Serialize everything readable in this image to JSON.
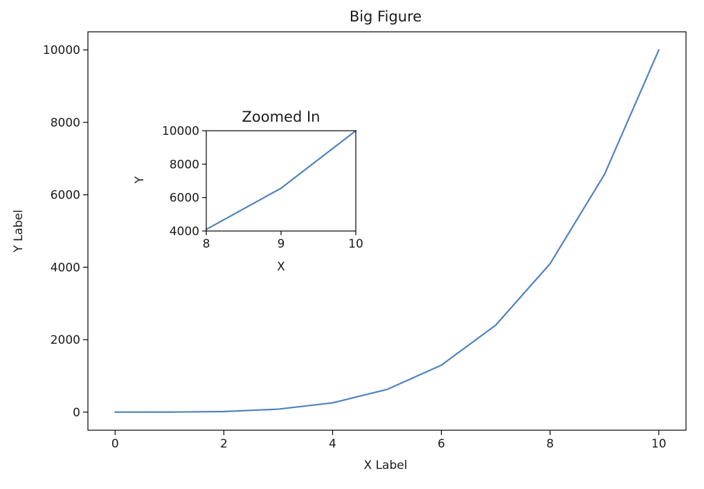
{
  "chart_data": [
    {
      "id": "main",
      "type": "line",
      "title": "Big Figure",
      "xlabel": "X Label",
      "ylabel": "Y Label",
      "xlim": [
        -0.5,
        10.5
      ],
      "ylim": [
        -500,
        10500
      ],
      "xticks": [
        0,
        2,
        4,
        6,
        8,
        10
      ],
      "yticks": [
        0,
        2000,
        4000,
        6000,
        8000,
        10000
      ],
      "grid": false,
      "legend": "none",
      "line_color": "#4f81bd",
      "series": [
        {
          "x": [
            0,
            1,
            2,
            3,
            4,
            5,
            6,
            7,
            8,
            9,
            10
          ],
          "y": [
            0,
            1,
            16,
            81,
            256,
            625,
            1296,
            2401,
            4096,
            6561,
            10000
          ]
        }
      ]
    },
    {
      "id": "inset",
      "type": "line",
      "title": "Zoomed In",
      "xlabel": "X",
      "ylabel": "Y",
      "xlim": [
        8,
        10
      ],
      "ylim": [
        4000,
        10000
      ],
      "xticks": [
        8,
        9,
        10
      ],
      "yticks": [
        4000,
        6000,
        8000,
        10000
      ],
      "grid": false,
      "legend": "none",
      "line_color": "#4f81bd",
      "series": [
        {
          "x": [
            8,
            9,
            10
          ],
          "y": [
            4096,
            6561,
            10000
          ]
        }
      ]
    }
  ]
}
